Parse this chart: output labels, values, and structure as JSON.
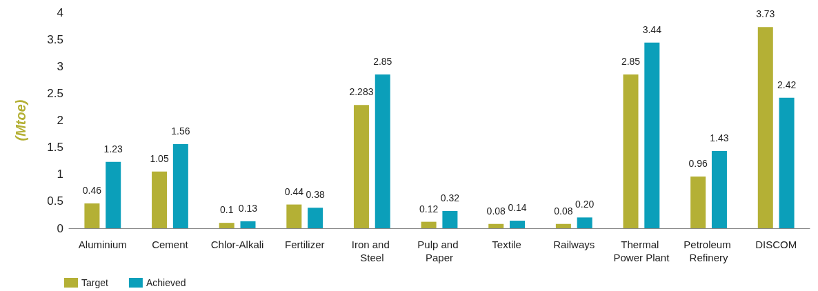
{
  "chart_data": {
    "type": "bar",
    "ylabel": "(Mtoe)",
    "categories": [
      "Aluminium",
      "Cement",
      "Chlor-Alkali",
      "Fertilizer",
      "Iron and Steel",
      "Pulp and Paper",
      "Textile",
      "Railways",
      "Thermal Power Plant",
      "Petroleum Refinery",
      "DISCOM"
    ],
    "series": [
      {
        "name": "Target",
        "color": "#b4b035",
        "values": [
          0.46,
          1.05,
          0.1,
          0.44,
          2.283,
          0.12,
          0.08,
          0.08,
          2.85,
          0.96,
          3.73
        ],
        "value_labels": [
          "0.46",
          "1.05",
          "0.1",
          "0.44",
          "2.283",
          "0.12",
          "0.08",
          "0.08",
          "2.85",
          "0.96",
          "3.73"
        ]
      },
      {
        "name": "Achieved",
        "color": "#0b9fba",
        "values": [
          1.23,
          1.56,
          0.13,
          0.38,
          2.85,
          0.32,
          0.14,
          0.2,
          3.44,
          1.43,
          2.42
        ],
        "value_labels": [
          "1.23",
          "1.56",
          "0.13",
          "0.38",
          "2.85",
          "0.32",
          "0.14",
          "0.20",
          "3.44",
          "1.43",
          "2.42"
        ]
      }
    ],
    "ylim": [
      0,
      4
    ],
    "yticks": [
      0,
      0.5,
      1,
      1.5,
      2,
      2.5,
      3,
      3.5,
      4
    ],
    "grid": false,
    "legend": "bottom left"
  }
}
